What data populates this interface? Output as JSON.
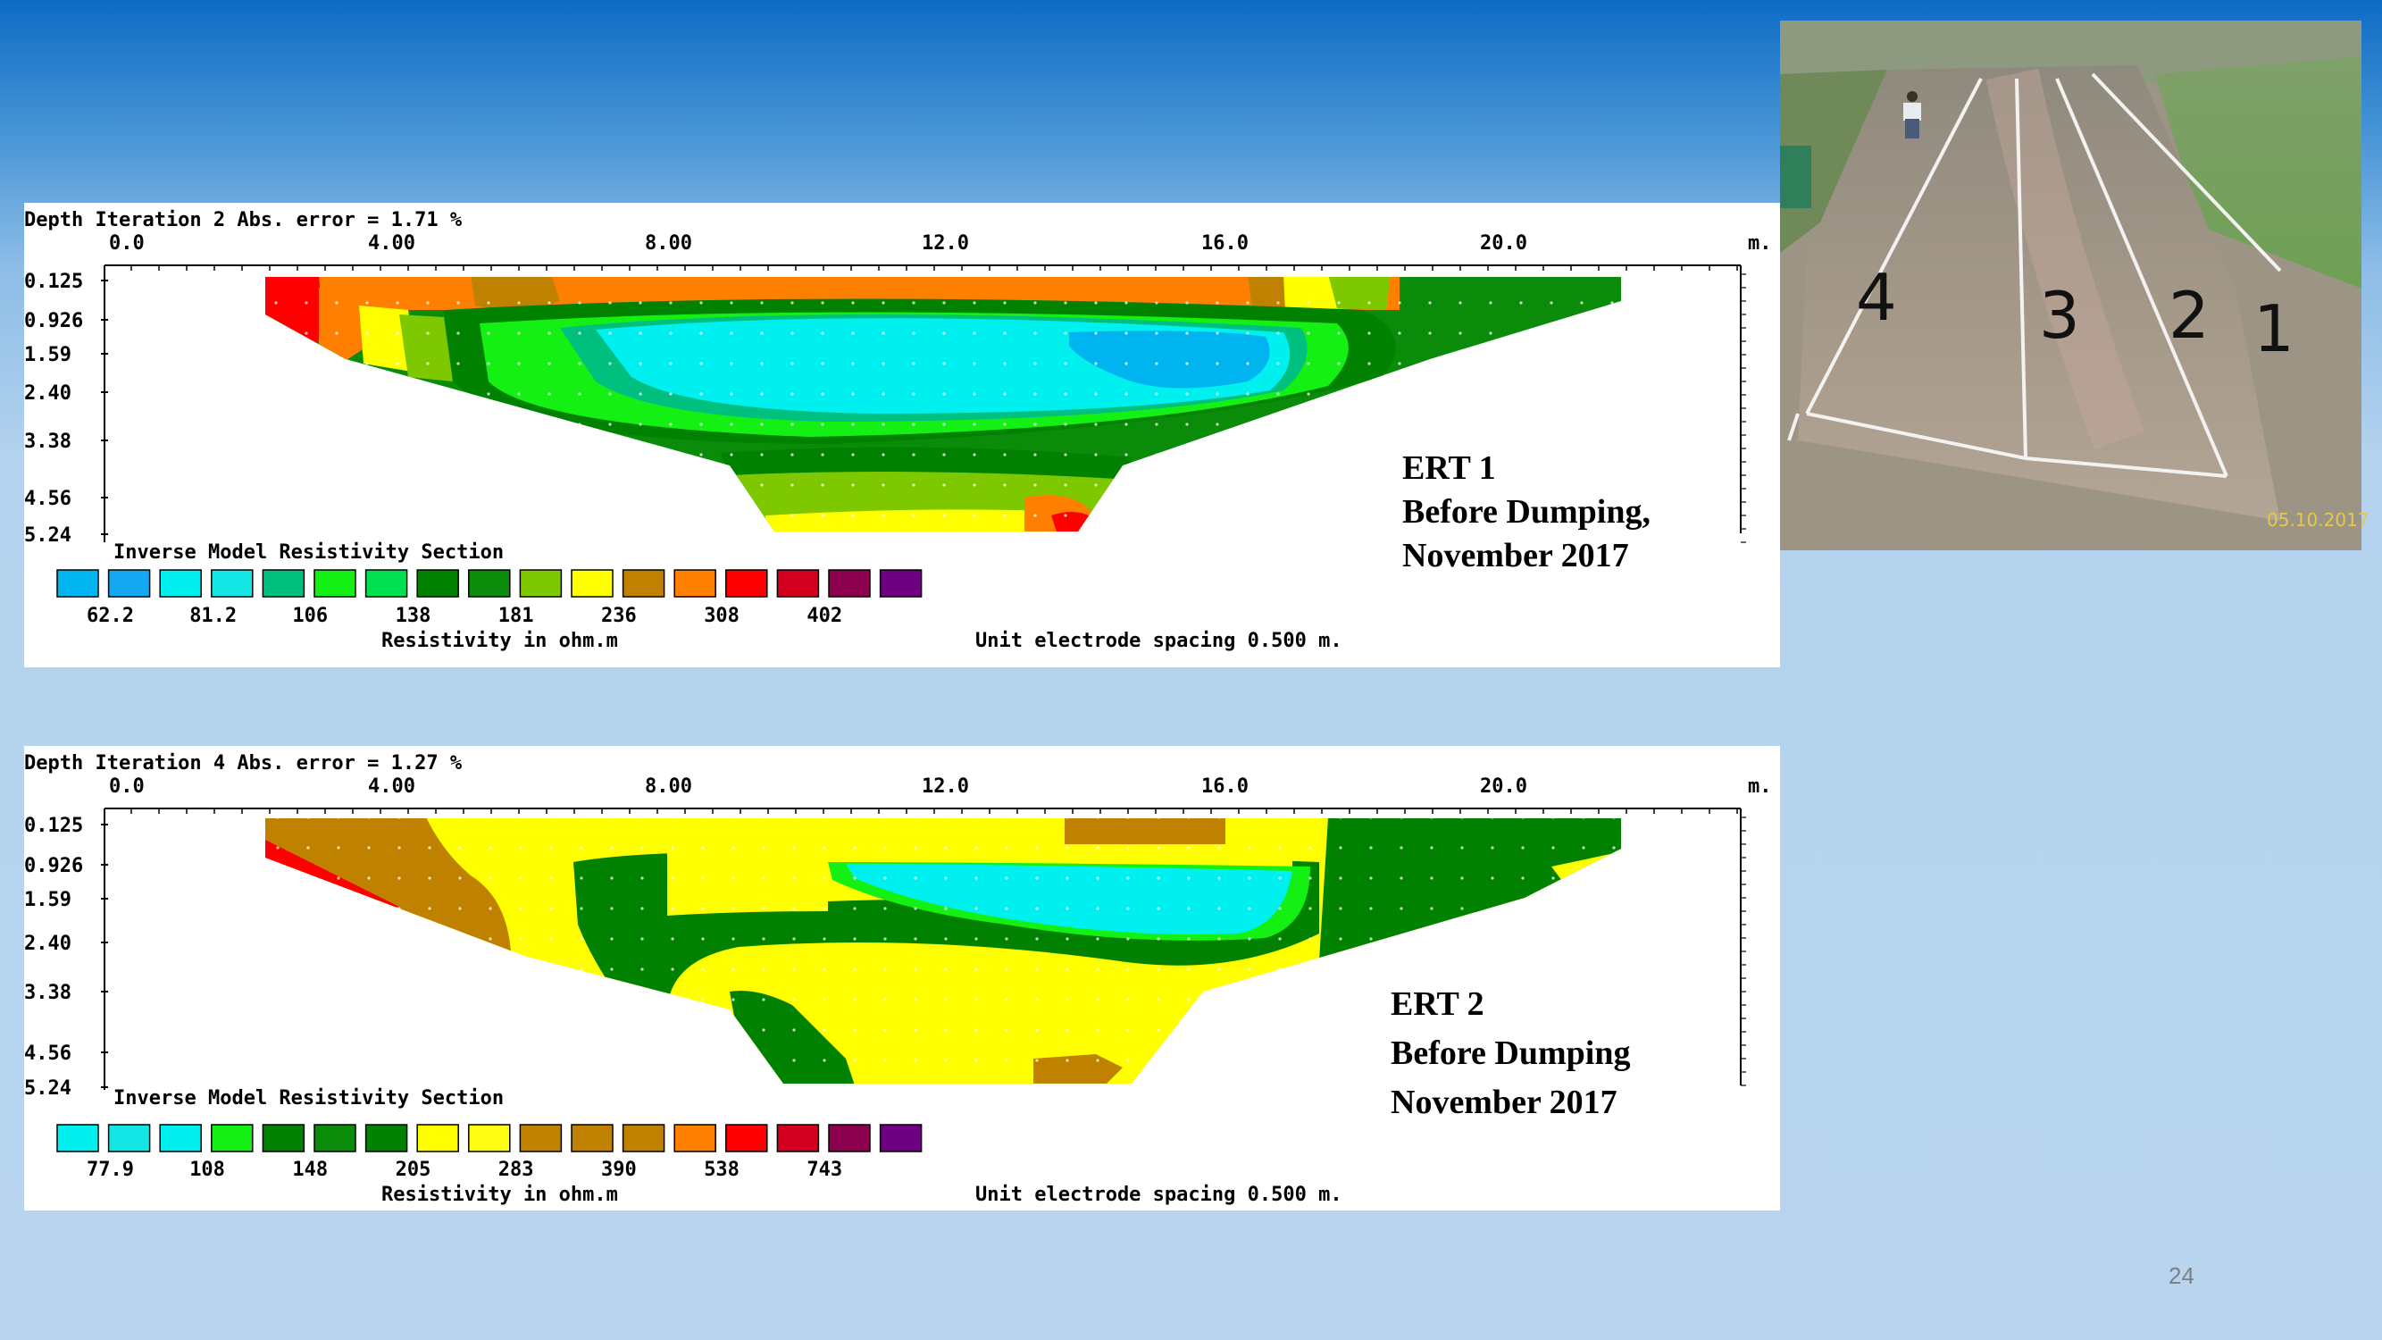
{
  "slide": {
    "page_number": "24"
  },
  "photo": {
    "timestamp": "05.10.2017",
    "strip_labels": [
      "4",
      "3",
      "2",
      "1"
    ]
  },
  "sections": [
    {
      "header": "Depth   Iteration 2 Abs. error = 1.71 %",
      "x_ticks": [
        "0.0",
        "4.00",
        "8.00",
        "12.0",
        "16.0",
        "20.0"
      ],
      "x_unit": "m.",
      "depth_ticks": [
        "0.125",
        "0.926",
        "1.59",
        "2.40",
        "3.38",
        "4.56",
        "5.24"
      ],
      "section_title": "Inverse Model Resistivity Section",
      "legend_colors": [
        "#00b4f0",
        "#14a8f0",
        "#00f0f0",
        "#14e6e6",
        "#00c080",
        "#14f014",
        "#00e050",
        "#008200",
        "#0a8c0a",
        "#7ec800",
        "#ffff00",
        "#c08000",
        "#ff8000",
        "#ff0000",
        "#d2001e",
        "#8c0050",
        "#6e0082"
      ],
      "legend_values": [
        "62.2",
        "81.2",
        "106",
        "138",
        "181",
        "236",
        "308",
        "402"
      ],
      "legend_unit": "Resistivity in ohm.m",
      "electrode_spacing": "Unit electrode spacing 0.500 m.",
      "title_line1": "ERT 1",
      "title_line2": "Before Dumping,",
      "title_line3": "November 2017"
    },
    {
      "header": "Depth   Iteration 4 Abs. error = 1.27 %",
      "x_ticks": [
        "0.0",
        "4.00",
        "8.00",
        "12.0",
        "16.0",
        "20.0"
      ],
      "x_unit": "m.",
      "depth_ticks": [
        "0.125",
        "0.926",
        "1.59",
        "2.40",
        "3.38",
        "4.56",
        "5.24"
      ],
      "section_title": "Inverse Model Resistivity Section",
      "legend_colors": [
        "#00f0f0",
        "#14e6e6",
        "#00f0f0",
        "#14f014",
        "#008200",
        "#0a8c0a",
        "#008200",
        "#ffff00",
        "#ffff14",
        "#c08000",
        "#c08000",
        "#c08000",
        "#ff8000",
        "#ff0000",
        "#d2001e",
        "#8c0050",
        "#6e0082"
      ],
      "legend_values": [
        "77.9",
        "108",
        "148",
        "205",
        "283",
        "390",
        "538",
        "743"
      ],
      "legend_unit": "Resistivity in ohm.m",
      "electrode_spacing": "Unit electrode spacing 0.500 m.",
      "title_line1": "ERT 2",
      "title_line2": "Before Dumping",
      "title_line3": "November 2017"
    }
  ]
}
